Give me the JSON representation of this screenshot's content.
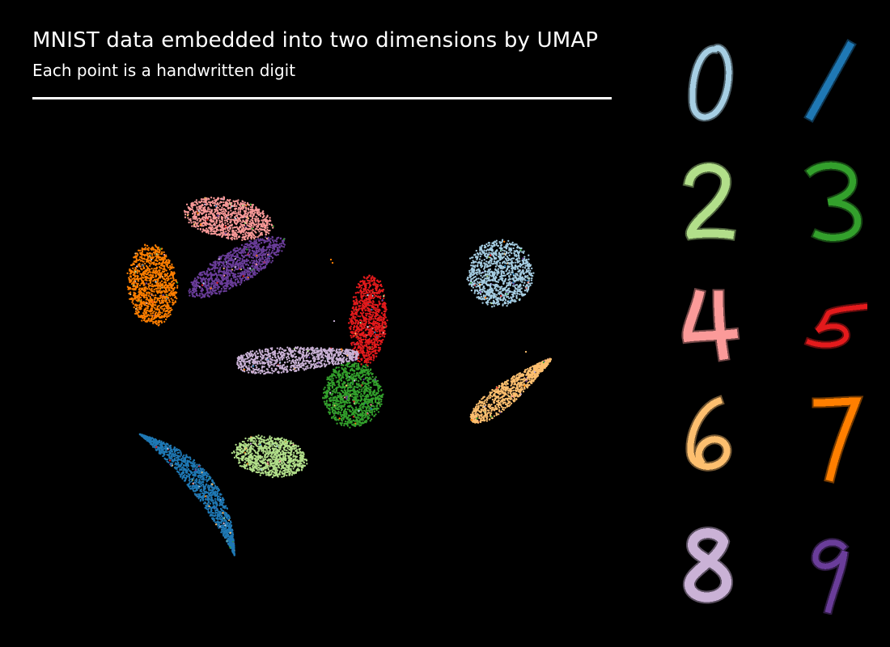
{
  "title": "MNIST data embedded into two dimensions by UMAP",
  "subtitle": "Each point is a handwritten digit",
  "chart_data": {
    "type": "scatter",
    "title": "MNIST data embedded into two dimensions by UMAP",
    "subtitle": "Each point is a handwritten digit",
    "xlabel": "",
    "ylabel": "",
    "grid": false,
    "axes_visible": false,
    "background": "#000000",
    "legend": "digit images on right, two columns",
    "series": [
      {
        "name": "0",
        "color": "#a6cee3"
      },
      {
        "name": "1",
        "color": "#1f78b4"
      },
      {
        "name": "2",
        "color": "#b2df8a"
      },
      {
        "name": "3",
        "color": "#33a02c"
      },
      {
        "name": "4",
        "color": "#fb9a99"
      },
      {
        "name": "5",
        "color": "#e31a1c"
      },
      {
        "name": "6",
        "color": "#fdbf6f"
      },
      {
        "name": "7",
        "color": "#ff7f00"
      },
      {
        "name": "8",
        "color": "#cab2d6"
      },
      {
        "name": "9",
        "color": "#6a3d9a"
      }
    ]
  },
  "legend_digits": [
    {
      "label": "0",
      "color": "#a6cee3"
    },
    {
      "label": "1",
      "color": "#1f78b4"
    },
    {
      "label": "2",
      "color": "#b2df8a"
    },
    {
      "label": "3",
      "color": "#33a02c"
    },
    {
      "label": "4",
      "color": "#fb9a99"
    },
    {
      "label": "5",
      "color": "#e31a1c"
    },
    {
      "label": "6",
      "color": "#fdbf6f"
    },
    {
      "label": "7",
      "color": "#ff7f00"
    },
    {
      "label": "8",
      "color": "#cab2d6"
    },
    {
      "label": "9",
      "color": "#6a3d9a"
    }
  ]
}
